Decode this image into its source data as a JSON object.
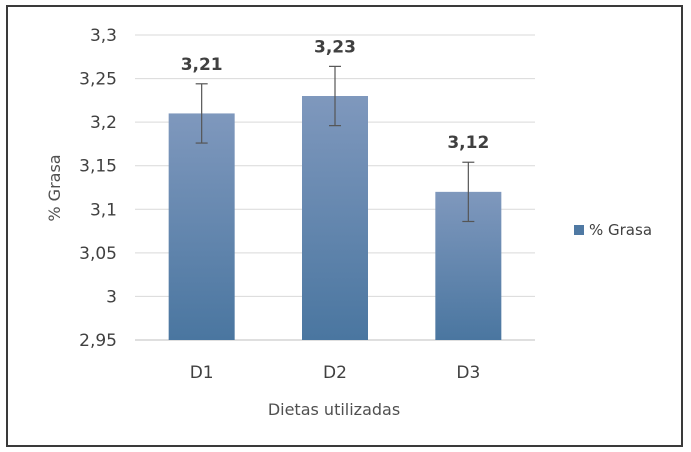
{
  "chart_data": {
    "type": "bar",
    "categories": [
      "D1",
      "D2",
      "D3"
    ],
    "series": [
      {
        "name": "% Grasa",
        "values": [
          3.21,
          3.23,
          3.12
        ],
        "errors": [
          0.034,
          0.034,
          0.034
        ],
        "data_labels": [
          "3,21",
          "3,23",
          "3,12"
        ]
      }
    ],
    "xlabel": "Dietas utilizadas",
    "ylabel": "% Grasa",
    "ylim": [
      2.95,
      3.3
    ],
    "yticks": [
      2.95,
      3,
      3.05,
      3.1,
      3.15,
      3.2,
      3.25,
      3.3
    ],
    "ytick_labels": [
      "2,95",
      "3",
      "3,05",
      "3,1",
      "3,15",
      "3,2",
      "3,25",
      "3,3"
    ],
    "grid": true,
    "legend_position": "right",
    "colors": {
      "bar_top": "#7f98bd",
      "bar_bottom": "#4a76a0",
      "grid": "#d9d9d9",
      "axis": "#bfbfbf",
      "error": "#555555",
      "legend": "#4f79a3"
    }
  }
}
